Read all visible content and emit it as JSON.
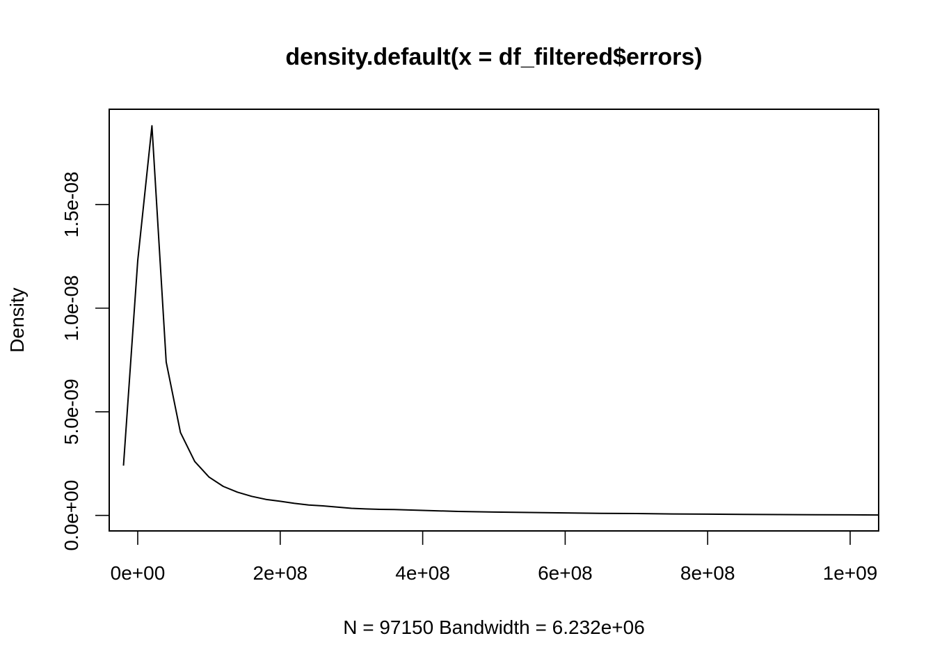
{
  "chart_data": {
    "type": "line",
    "title": "density.default(x = df_filtered$errors)",
    "xlabel": "N = 97150   Bandwidth = 6.232e+06",
    "ylabel": "Density",
    "xlim": [
      -40000000,
      1040000000
    ],
    "ylim": [
      -7.5e-10,
      1.96e-08
    ],
    "x_ticks": [
      {
        "value": 0,
        "label": "0e+00"
      },
      {
        "value": 200000000,
        "label": "2e+08"
      },
      {
        "value": 400000000,
        "label": "4e+08"
      },
      {
        "value": 600000000,
        "label": "6e+08"
      },
      {
        "value": 800000000,
        "label": "8e+08"
      },
      {
        "value": 1000000000,
        "label": "1e+09"
      }
    ],
    "y_ticks": [
      {
        "value": 0,
        "label": "0.0e+00"
      },
      {
        "value": 5e-09,
        "label": "5.0e-09"
      },
      {
        "value": 1e-08,
        "label": "1.0e-08"
      },
      {
        "value": 1.5e-08,
        "label": "1.5e-08"
      }
    ],
    "grid": false,
    "series": [
      {
        "x": [
          -20000000,
          0,
          20000000,
          40000000,
          60000000,
          80000000,
          100000000,
          120000000,
          140000000,
          160000000,
          180000000,
          200000000,
          220000000,
          240000000,
          260000000,
          280000000,
          300000000,
          320000000,
          340000000,
          360000000,
          380000000,
          400000000,
          450000000,
          500000000,
          550000000,
          600000000,
          650000000,
          700000000,
          750000000,
          800000000,
          850000000,
          900000000,
          950000000,
          1000000000,
          1040000000
        ],
        "y": [
          2.4e-09,
          1.23e-08,
          1.88e-08,
          7.4e-09,
          4e-09,
          2.6e-09,
          1.85e-09,
          1.4e-09,
          1.12e-09,
          9.2e-10,
          7.7e-10,
          6.8e-10,
          5.8e-10,
          5e-10,
          4.6e-10,
          4e-10,
          3.4e-10,
          3.1e-10,
          2.9e-10,
          2.8e-10,
          2.6e-10,
          2.4e-10,
          1.9e-10,
          1.6e-10,
          1.4e-10,
          1.2e-10,
          1e-10,
          9e-11,
          7e-11,
          6e-11,
          5e-11,
          4e-11,
          3e-11,
          2.5e-11,
          2e-11
        ]
      }
    ]
  }
}
